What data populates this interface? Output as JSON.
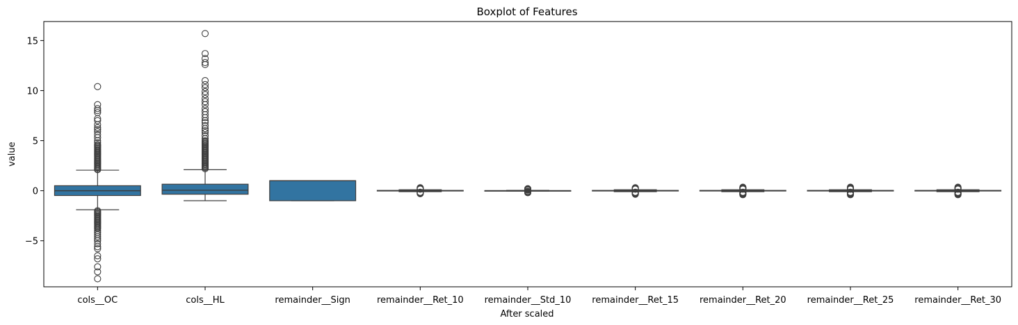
{
  "chart_data": {
    "type": "boxplot",
    "title": "Boxplot of Features",
    "xlabel": "After scaled",
    "ylabel": "value",
    "ylim": [
      -9.6,
      16.9
    ],
    "yticks": [
      -5,
      0,
      5,
      10,
      15
    ],
    "ytick_labels": [
      "−5",
      "0",
      "5",
      "10",
      "15"
    ],
    "grid": false,
    "box_color": "#3274a1",
    "edge_color": "#3d3d3d",
    "categories": [
      "cols__OC",
      "cols__HL",
      "remainder__Sign",
      "remainder__Ret_10",
      "remainder__Std_10",
      "remainder__Ret_15",
      "remainder__Ret_20",
      "remainder__Ret_25",
      "remainder__Ret_30"
    ],
    "boxes": [
      {
        "q1": -0.48,
        "median": 0.0,
        "q3": 0.5,
        "whisker_low": -1.9,
        "whisker_high": 2.05,
        "outliers": [
          2.1,
          2.2,
          2.3,
          2.4,
          2.5,
          2.6,
          2.7,
          2.8,
          2.9,
          3.0,
          3.1,
          3.2,
          3.3,
          3.4,
          3.5,
          3.6,
          3.7,
          3.8,
          3.9,
          4.0,
          4.1,
          4.2,
          4.3,
          4.4,
          4.5,
          4.6,
          4.8,
          5.0,
          5.3,
          5.6,
          5.9,
          6.1,
          6.3,
          6.6,
          7.0,
          7.2,
          7.8,
          8.0,
          8.2,
          8.6,
          10.4,
          -2.0,
          -2.1,
          -2.2,
          -2.3,
          -2.4,
          -2.5,
          -2.6,
          -2.7,
          -2.8,
          -2.9,
          -3.0,
          -3.1,
          -3.2,
          -3.3,
          -3.4,
          -3.5,
          -3.6,
          -3.7,
          -3.8,
          -4.0,
          -4.2,
          -4.4,
          -4.6,
          -4.8,
          -5.0,
          -5.3,
          -5.6,
          -5.8,
          -6.5,
          -6.8,
          -7.6,
          -8.1,
          -8.8
        ]
      },
      {
        "q1": -0.35,
        "median": 0.05,
        "q3": 0.65,
        "whisker_low": -1.0,
        "whisker_high": 2.1,
        "outliers": [
          2.2,
          2.3,
          2.4,
          2.5,
          2.6,
          2.7,
          2.8,
          2.9,
          3.0,
          3.1,
          3.2,
          3.3,
          3.4,
          3.5,
          3.6,
          3.7,
          3.8,
          3.9,
          4.0,
          4.1,
          4.2,
          4.3,
          4.4,
          4.5,
          4.6,
          4.7,
          4.8,
          4.9,
          5.0,
          5.2,
          5.5,
          5.8,
          6.0,
          6.2,
          6.5,
          6.8,
          7.0,
          7.3,
          7.6,
          7.9,
          8.2,
          8.6,
          8.9,
          9.2,
          9.6,
          9.9,
          10.3,
          10.6,
          11.0,
          12.6,
          12.8,
          13.2,
          13.7,
          15.7
        ]
      },
      {
        "q1": -1.0,
        "median": 1.0,
        "q3": 1.0,
        "whisker_low": -1.0,
        "whisker_high": 1.0,
        "outliers": []
      },
      {
        "q1": -0.03,
        "median": 0.0,
        "q3": 0.03,
        "whisker_low": -0.1,
        "whisker_high": 0.1,
        "outliers": [
          -0.3,
          -0.25,
          -0.2,
          -0.15,
          0.15,
          0.2,
          0.25,
          0.3
        ]
      },
      {
        "q1": -0.01,
        "median": 0.0,
        "q3": 0.01,
        "whisker_low": -0.04,
        "whisker_high": 0.04,
        "outliers": [
          -0.2,
          -0.15,
          -0.1,
          -0.06,
          0.06,
          0.1,
          0.15,
          0.2
        ]
      },
      {
        "q1": -0.03,
        "median": 0.0,
        "q3": 0.03,
        "whisker_low": -0.1,
        "whisker_high": 0.1,
        "outliers": [
          -0.35,
          -0.3,
          -0.25,
          -0.2,
          -0.15,
          0.15,
          0.2,
          0.25,
          0.3
        ]
      },
      {
        "q1": -0.03,
        "median": 0.0,
        "q3": 0.03,
        "whisker_low": -0.1,
        "whisker_high": 0.1,
        "outliers": [
          -0.4,
          -0.35,
          -0.3,
          -0.25,
          -0.2,
          -0.15,
          0.15,
          0.2,
          0.25,
          0.3,
          0.35
        ]
      },
      {
        "q1": -0.03,
        "median": 0.0,
        "q3": 0.03,
        "whisker_low": -0.1,
        "whisker_high": 0.1,
        "outliers": [
          -0.4,
          -0.35,
          -0.3,
          -0.25,
          -0.2,
          -0.15,
          0.15,
          0.2,
          0.25,
          0.3,
          0.35
        ]
      },
      {
        "q1": -0.03,
        "median": 0.0,
        "q3": 0.03,
        "whisker_low": -0.1,
        "whisker_high": 0.1,
        "outliers": [
          -0.4,
          -0.35,
          -0.3,
          -0.25,
          -0.2,
          -0.15,
          0.15,
          0.2,
          0.25,
          0.3,
          0.35
        ]
      }
    ]
  }
}
